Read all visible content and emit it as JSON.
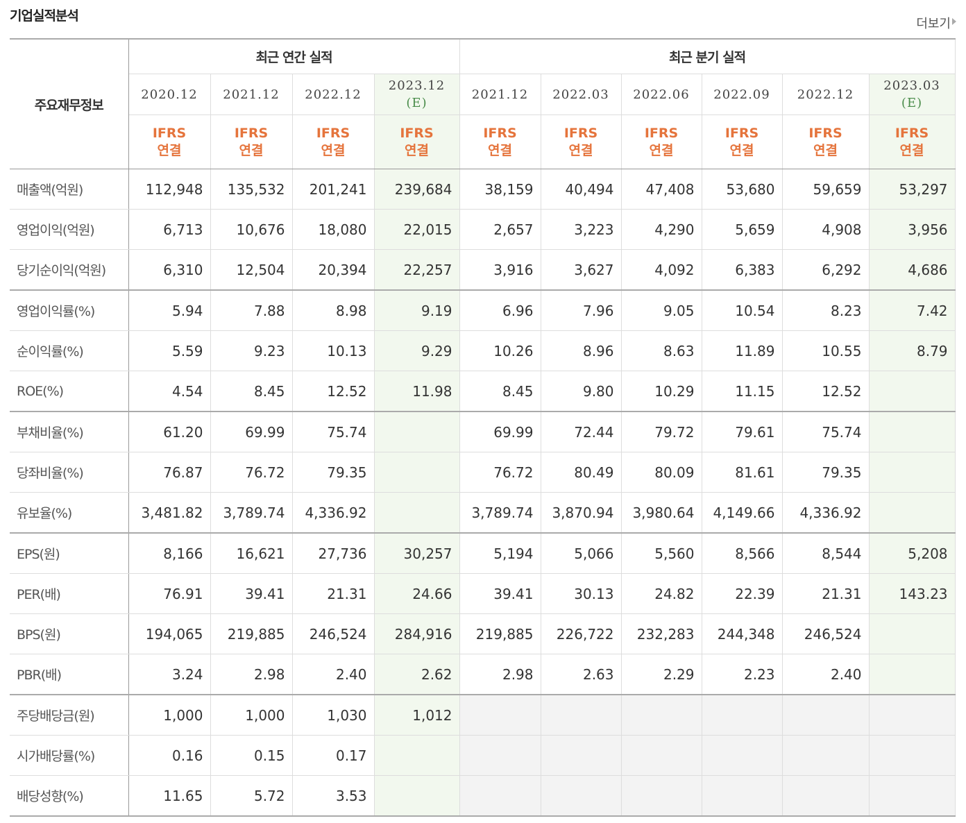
{
  "header": {
    "title": "기업실적분석",
    "more": "더보기"
  },
  "table": {
    "corner": "주요재무정보",
    "groups": [
      "최근 연간 실적",
      "최근 분기 실적"
    ],
    "columns": [
      {
        "period": "2020.12",
        "standard": "IFRS",
        "basis": "연결"
      },
      {
        "period": "2021.12",
        "standard": "IFRS",
        "basis": "연결"
      },
      {
        "period": "2022.12",
        "standard": "IFRS",
        "basis": "연결"
      },
      {
        "period": "2023.12",
        "note": "(E)",
        "standard": "IFRS",
        "basis": "연결"
      },
      {
        "period": "2021.12",
        "standard": "IFRS",
        "basis": "연결"
      },
      {
        "period": "2022.03",
        "standard": "IFRS",
        "basis": "연결"
      },
      {
        "period": "2022.06",
        "standard": "IFRS",
        "basis": "연결"
      },
      {
        "period": "2022.09",
        "standard": "IFRS",
        "basis": "연결"
      },
      {
        "period": "2022.12",
        "standard": "IFRS",
        "basis": "연결"
      },
      {
        "period": "2023.03",
        "note": "(E)",
        "standard": "IFRS",
        "basis": "연결"
      }
    ],
    "rows": [
      {
        "label": "매출액(억원)",
        "values": [
          "112,948",
          "135,532",
          "201,241",
          "239,684",
          "38,159",
          "40,494",
          "47,408",
          "53,680",
          "59,659",
          "53,297"
        ]
      },
      {
        "label": "영업이익(억원)",
        "values": [
          "6,713",
          "10,676",
          "18,080",
          "22,015",
          "2,657",
          "3,223",
          "4,290",
          "5,659",
          "4,908",
          "3,956"
        ]
      },
      {
        "label": "당기순이익(억원)",
        "values": [
          "6,310",
          "12,504",
          "20,394",
          "22,257",
          "3,916",
          "3,627",
          "4,092",
          "6,383",
          "6,292",
          "4,686"
        ]
      },
      {
        "label": "영업이익률(%)",
        "values": [
          "5.94",
          "7.88",
          "8.98",
          "9.19",
          "6.96",
          "7.96",
          "9.05",
          "10.54",
          "8.23",
          "7.42"
        ]
      },
      {
        "label": "순이익률(%)",
        "values": [
          "5.59",
          "9.23",
          "10.13",
          "9.29",
          "10.26",
          "8.96",
          "8.63",
          "11.89",
          "10.55",
          "8.79"
        ]
      },
      {
        "label": "ROE(%)",
        "values": [
          "4.54",
          "8.45",
          "12.52",
          "11.98",
          "8.45",
          "9.80",
          "10.29",
          "11.15",
          "12.52",
          null
        ]
      },
      {
        "label": "부채비율(%)",
        "values": [
          "61.20",
          "69.99",
          "75.74",
          null,
          "69.99",
          "72.44",
          "79.72",
          "79.61",
          "75.74",
          null
        ]
      },
      {
        "label": "당좌비율(%)",
        "values": [
          "76.87",
          "76.72",
          "79.35",
          null,
          "76.72",
          "80.49",
          "80.09",
          "81.61",
          "79.35",
          null
        ]
      },
      {
        "label": "유보율(%)",
        "values": [
          "3,481.82",
          "3,789.74",
          "4,336.92",
          null,
          "3,789.74",
          "3,870.94",
          "3,980.64",
          "4,149.66",
          "4,336.92",
          null
        ]
      },
      {
        "label": "EPS(원)",
        "values": [
          "8,166",
          "16,621",
          "27,736",
          "30,257",
          "5,194",
          "5,066",
          "5,560",
          "8,566",
          "8,544",
          "5,208"
        ]
      },
      {
        "label": "PER(배)",
        "values": [
          "76.91",
          "39.41",
          "21.31",
          "24.66",
          "39.41",
          "30.13",
          "24.82",
          "22.39",
          "21.31",
          "143.23"
        ]
      },
      {
        "label": "BPS(원)",
        "values": [
          "194,065",
          "219,885",
          "246,524",
          "284,916",
          "219,885",
          "226,722",
          "232,283",
          "244,348",
          "246,524",
          null
        ]
      },
      {
        "label": "PBR(배)",
        "values": [
          "3.24",
          "2.98",
          "2.40",
          "2.62",
          "2.98",
          "2.63",
          "2.29",
          "2.23",
          "2.40",
          null
        ]
      },
      {
        "label": "주당배당금(원)",
        "values": [
          "1,000",
          "1,000",
          "1,030",
          "1,012",
          null,
          null,
          null,
          null,
          null,
          null
        ]
      },
      {
        "label": "시가배당률(%)",
        "values": [
          "0.16",
          "0.15",
          "0.17",
          null,
          null,
          null,
          null,
          null,
          null,
          null
        ]
      },
      {
        "label": "배당성향(%)",
        "values": [
          "11.65",
          "5.72",
          "3.53",
          null,
          null,
          null,
          null,
          null,
          null,
          null
        ]
      }
    ]
  }
}
